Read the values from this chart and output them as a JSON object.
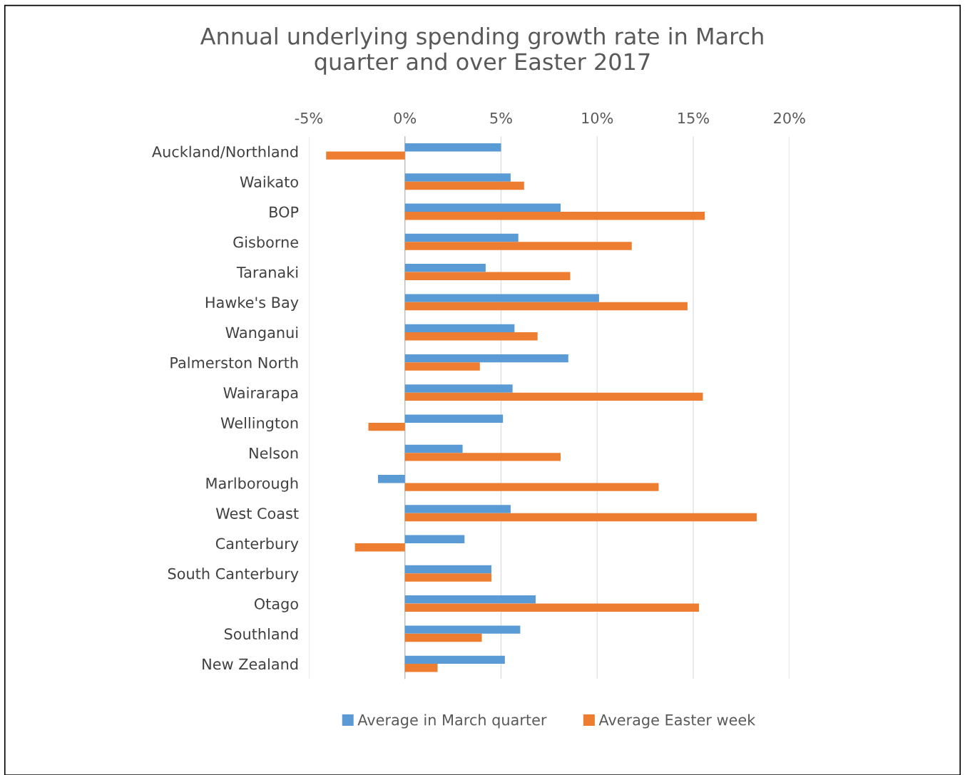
{
  "chart_data": {
    "type": "bar",
    "orientation": "horizontal",
    "title": "Annual underlying spending growth rate in March\nquarter and over Easter 2017",
    "categories": [
      "Auckland/Northland",
      "Waikato",
      "BOP",
      "Gisborne",
      "Taranaki",
      "Hawke's Bay",
      "Wanganui",
      "Palmerston North",
      "Wairarapa",
      "Wellington",
      "Nelson",
      "Marlborough",
      "West Coast",
      "Canterbury",
      "South Canterbury",
      "Otago",
      "Southland",
      "New Zealand"
    ],
    "series": [
      {
        "name": "Average in March quarter",
        "color": "#5b9bd5",
        "values": [
          5.0,
          5.5,
          8.1,
          5.9,
          4.2,
          10.1,
          5.7,
          8.5,
          5.6,
          5.1,
          3.0,
          -1.4,
          5.5,
          3.1,
          4.5,
          6.8,
          6.0,
          5.2
        ]
      },
      {
        "name": "Average Easter week",
        "color": "#ed7d31",
        "values": [
          -4.1,
          6.2,
          15.6,
          11.8,
          8.6,
          14.7,
          6.9,
          3.9,
          15.5,
          -1.9,
          8.1,
          13.2,
          18.3,
          -2.6,
          4.5,
          15.3,
          4.0,
          1.7
        ]
      }
    ],
    "xlim": [
      -5,
      20
    ],
    "xticks": [
      {
        "value": -5,
        "label": "-5%"
      },
      {
        "value": 0,
        "label": "0%"
      },
      {
        "value": 5,
        "label": "5%"
      },
      {
        "value": 10,
        "label": "10%"
      },
      {
        "value": 15,
        "label": "15%"
      },
      {
        "value": 20,
        "label": "20%"
      }
    ],
    "grid": "x",
    "legend": "bottom"
  }
}
